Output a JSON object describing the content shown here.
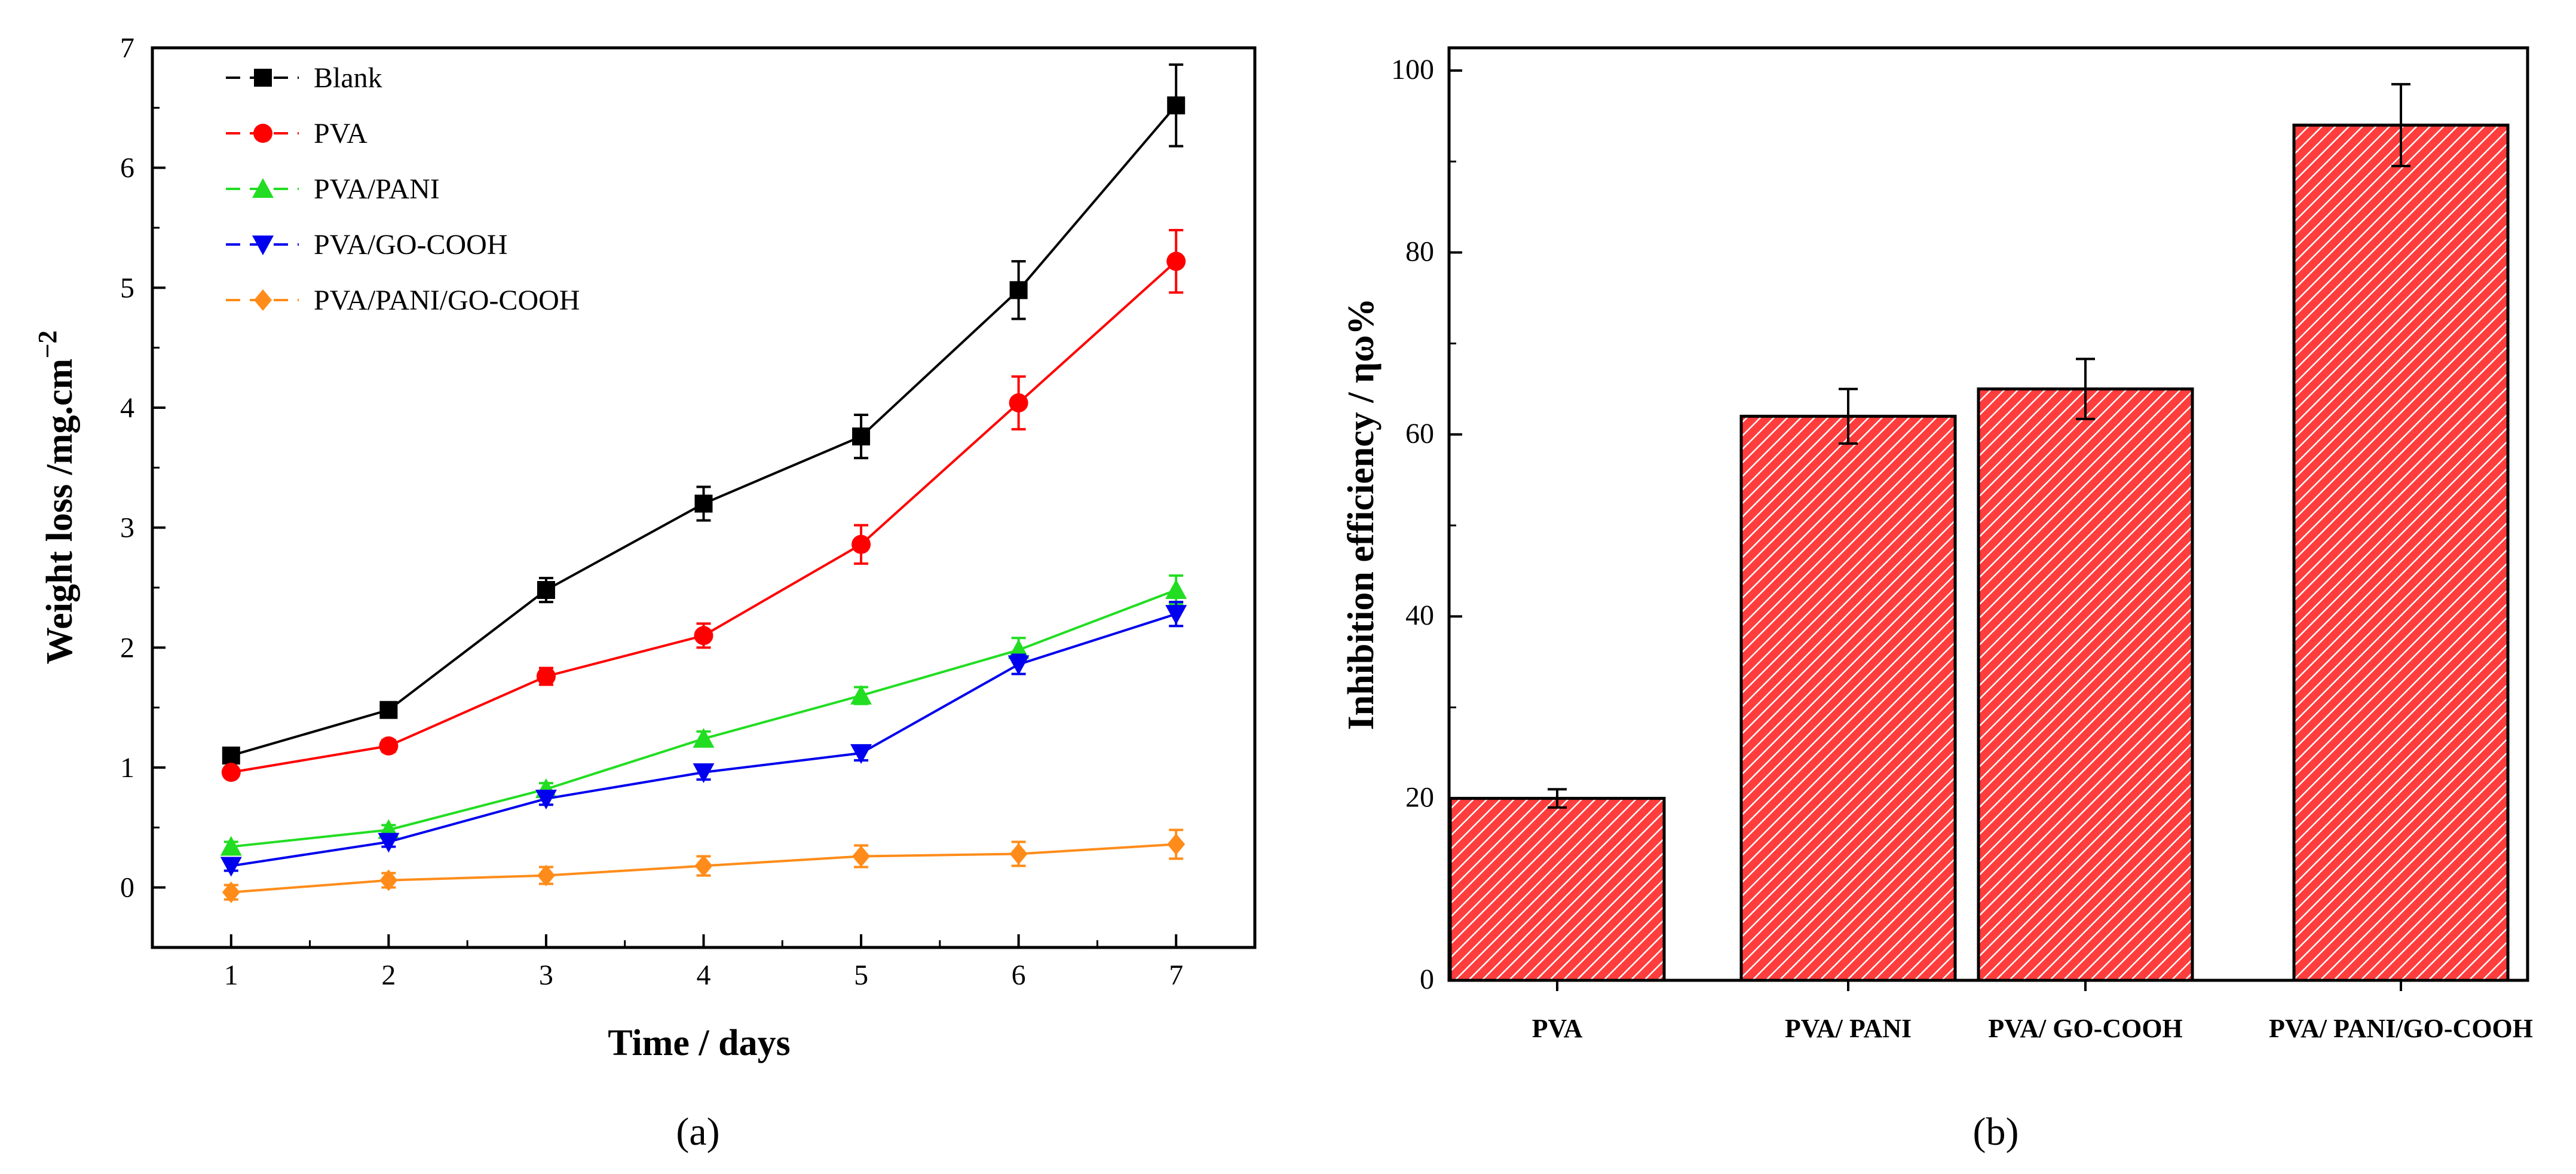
{
  "chart_data": [
    {
      "type": "line",
      "panel_label": "a",
      "xlabel": "Time / days",
      "ylabel": "Weight loss /mg.cm",
      "ylabel_exponent": "−2",
      "x": [
        1,
        2,
        3,
        4,
        5,
        6,
        7
      ],
      "xlim": [
        0.5,
        7.5
      ],
      "ylim": [
        -0.5,
        7
      ],
      "xticks": [
        "1",
        "2",
        "3",
        "4",
        "5",
        "6",
        "7"
      ],
      "yticks": [
        "0",
        "1",
        "2",
        "3",
        "4",
        "5",
        "6",
        "7"
      ],
      "legend_position": "top-left",
      "series": [
        {
          "name": "Blank",
          "color": "#000000",
          "marker": "square",
          "values": [
            1.1,
            1.48,
            2.48,
            3.2,
            3.76,
            4.98,
            6.52
          ],
          "errors": [
            0.05,
            0.06,
            0.1,
            0.14,
            0.18,
            0.24,
            0.34
          ]
        },
        {
          "name": "PVA",
          "color": "#ff0000",
          "marker": "circle",
          "values": [
            0.96,
            1.18,
            1.76,
            2.1,
            2.86,
            4.04,
            5.22
          ],
          "errors": [
            0.04,
            0.05,
            0.07,
            0.1,
            0.16,
            0.22,
            0.26
          ]
        },
        {
          "name": "PVA/PANI",
          "color": "#22dd22",
          "marker": "triangle-up",
          "values": [
            0.34,
            0.48,
            0.82,
            1.24,
            1.6,
            1.98,
            2.48
          ],
          "errors": [
            0.04,
            0.04,
            0.05,
            0.06,
            0.07,
            0.1,
            0.12
          ]
        },
        {
          "name": "PVA/GO-COOH",
          "color": "#0000ee",
          "marker": "triangle-down",
          "values": [
            0.18,
            0.38,
            0.74,
            0.96,
            1.12,
            1.86,
            2.28
          ],
          "errors": [
            0.04,
            0.04,
            0.05,
            0.06,
            0.06,
            0.08,
            0.1
          ]
        },
        {
          "name": "PVA/PANI/GO-COOH",
          "color": "#ff8c1a",
          "marker": "diamond",
          "values": [
            -0.04,
            0.06,
            0.1,
            0.18,
            0.26,
            0.28,
            0.36
          ],
          "errors": [
            0.06,
            0.06,
            0.07,
            0.08,
            0.09,
            0.1,
            0.12
          ]
        }
      ]
    },
    {
      "type": "bar",
      "panel_label": "b",
      "xlabel": "",
      "ylabel": "Inhibition efficiency / ηω%",
      "ylim": [
        0,
        100
      ],
      "yticks": [
        "0",
        "20",
        "40",
        "60",
        "80",
        "100"
      ],
      "categories": [
        "PVA",
        "PVA/ PANI",
        "PVA/ GO-COOH",
        "PVA/ PANI/GO-COOH"
      ],
      "values": [
        20,
        62,
        65,
        94
      ],
      "errors": [
        1,
        3,
        3.3,
        4.5
      ],
      "bar_color": "#ff3b3b",
      "hatch": "diagonal"
    }
  ],
  "captions": [
    "(a)",
    "(b)"
  ]
}
